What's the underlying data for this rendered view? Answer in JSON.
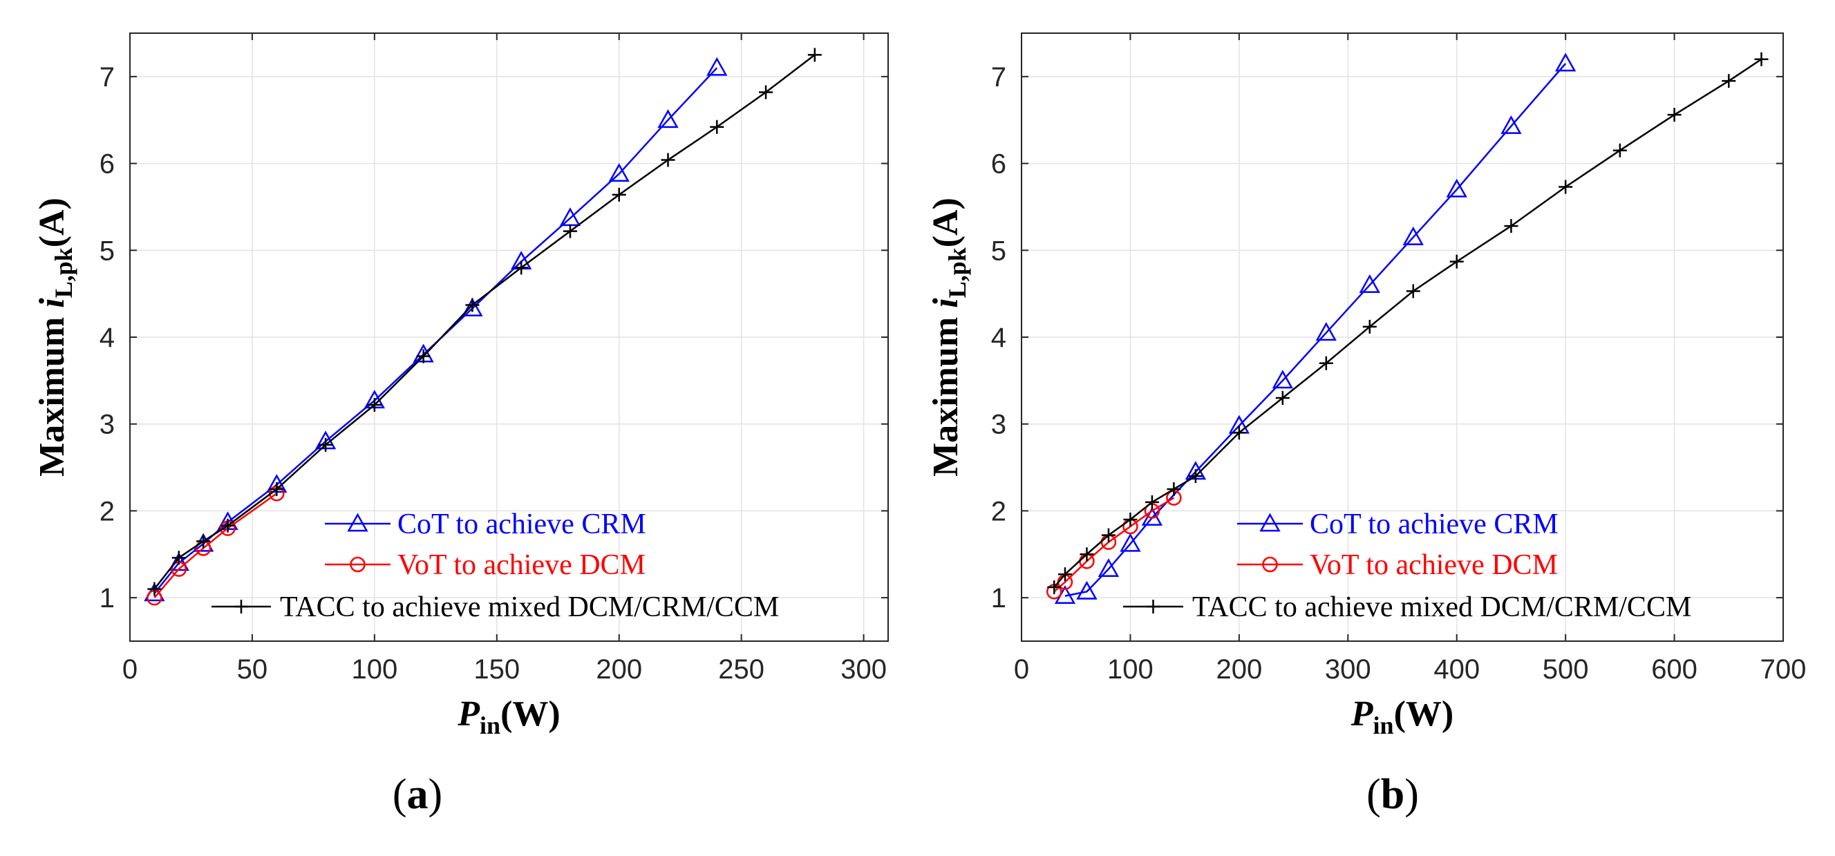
{
  "chart_data": [
    {
      "type": "line",
      "panel_label": "a",
      "xlabel": {
        "main": "P",
        "sub": "in",
        "unit": "(W)"
      },
      "ylabel": {
        "main": "Maximum ",
        "var": "i",
        "sub": "L,pk",
        "unit": "(A)"
      },
      "xlim": [
        0,
        310
      ],
      "ylim": [
        0.5,
        7.5
      ],
      "xticks": [
        0,
        50,
        100,
        150,
        200,
        250,
        300
      ],
      "yticks": [
        1,
        2,
        3,
        4,
        5,
        6,
        7
      ],
      "grid": true,
      "legend_position": "bottom-right",
      "series": [
        {
          "name": "CoT to achieve CRM",
          "color": "#0000ff",
          "marker": "triangle",
          "x": [
            10,
            20,
            30,
            40,
            60,
            80,
            100,
            120,
            140,
            160,
            180,
            200,
            220,
            240
          ],
          "y": [
            1.05,
            1.4,
            1.62,
            1.87,
            2.3,
            2.8,
            3.27,
            3.8,
            4.33,
            4.87,
            5.37,
            5.88,
            6.5,
            7.1
          ]
        },
        {
          "name": "VoT to achieve DCM",
          "color": "#ff0000",
          "marker": "circle",
          "x": [
            10,
            20,
            30,
            40,
            60
          ],
          "y": [
            1.0,
            1.33,
            1.57,
            1.8,
            2.2
          ]
        },
        {
          "name": "TACC to achieve mixed DCM/CRM/CCM",
          "color": "#000000",
          "marker": "plus",
          "x": [
            10,
            20,
            30,
            40,
            60,
            80,
            100,
            120,
            140,
            160,
            180,
            200,
            220,
            240,
            260,
            280
          ],
          "y": [
            1.1,
            1.46,
            1.65,
            1.83,
            2.25,
            2.76,
            3.22,
            3.78,
            4.37,
            4.8,
            5.22,
            5.64,
            6.04,
            6.42,
            6.82,
            7.25
          ]
        }
      ]
    },
    {
      "type": "line",
      "panel_label": "b",
      "xlabel": {
        "main": "P",
        "sub": "in",
        "unit": "(W)"
      },
      "ylabel": {
        "main": "Maximum ",
        "var": "i",
        "sub": "L,pk",
        "unit": "(A)"
      },
      "xlim": [
        0,
        700
      ],
      "ylim": [
        0.5,
        7.5
      ],
      "xticks": [
        0,
        100,
        200,
        300,
        400,
        500,
        600,
        700
      ],
      "yticks": [
        1,
        2,
        3,
        4,
        5,
        6,
        7
      ],
      "grid": true,
      "legend_position": "bottom-right",
      "series": [
        {
          "name": "CoT to achieve CRM",
          "color": "#0000ff",
          "marker": "triangle",
          "x": [
            40,
            60,
            80,
            100,
            120,
            160,
            200,
            240,
            280,
            320,
            360,
            400,
            450,
            500
          ],
          "y": [
            1.02,
            1.07,
            1.33,
            1.62,
            1.92,
            2.45,
            2.98,
            3.5,
            4.05,
            4.6,
            5.15,
            5.7,
            6.43,
            7.15
          ]
        },
        {
          "name": "VoT to achieve DCM",
          "color": "#ff0000",
          "marker": "circle",
          "x": [
            30,
            40,
            60,
            80,
            100,
            120,
            140
          ],
          "y": [
            1.07,
            1.18,
            1.42,
            1.64,
            1.82,
            2.0,
            2.15
          ]
        },
        {
          "name": "TACC to achieve mixed DCM/CRM/CCM",
          "color": "#000000",
          "marker": "plus",
          "x": [
            30,
            40,
            60,
            80,
            100,
            120,
            140,
            160,
            200,
            240,
            280,
            320,
            360,
            400,
            450,
            500,
            550,
            600,
            650,
            680
          ],
          "y": [
            1.12,
            1.27,
            1.5,
            1.72,
            1.9,
            2.1,
            2.25,
            2.4,
            2.9,
            3.3,
            3.7,
            4.12,
            4.53,
            4.87,
            5.28,
            5.73,
            6.15,
            6.56,
            6.95,
            7.2
          ]
        }
      ]
    }
  ]
}
